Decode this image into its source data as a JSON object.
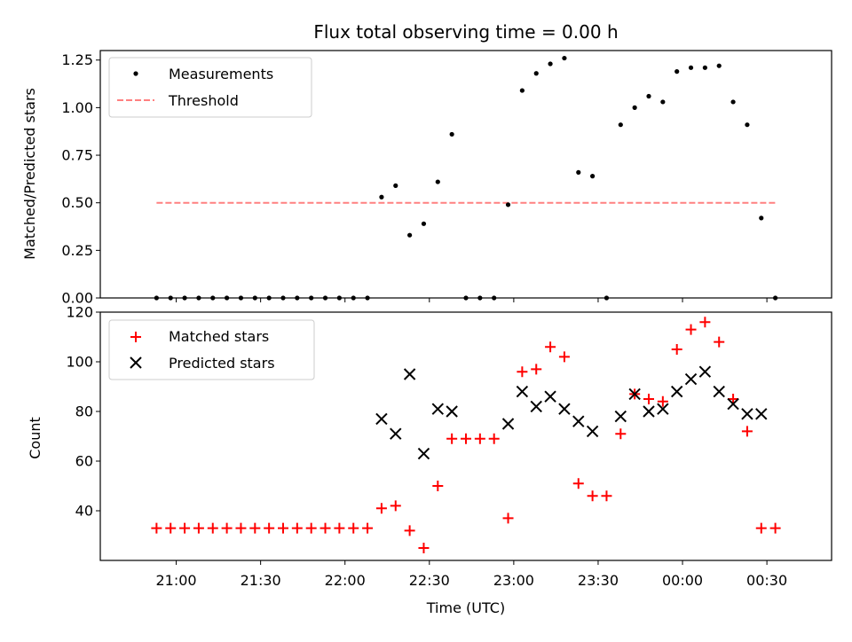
{
  "title": "Flux total observing time = 0.00 h",
  "colors": {
    "measurement": "#000000",
    "threshold": "#ff8080",
    "matched": "#ff0000",
    "predicted": "#000000"
  },
  "chart_data": [
    {
      "type": "scatter",
      "title": "Flux total observing time = 0.00 h",
      "ylabel": "Matched/Predicted stars",
      "xlabel": "",
      "ylim": [
        0,
        1.3
      ],
      "yticks": [
        0.0,
        0.25,
        0.5,
        0.75,
        1.0,
        1.25
      ],
      "ytick_labels": [
        "0.00",
        "0.25",
        "0.50",
        "0.75",
        "1.00",
        "1.25"
      ],
      "legend": {
        "position": "top-left",
        "entries": [
          "Measurements",
          "Threshold"
        ]
      },
      "series": [
        {
          "name": "Measurements",
          "marker": "dot",
          "points": [
            [
              "20:53",
              0
            ],
            [
              "20:58",
              0
            ],
            [
              "21:03",
              0
            ],
            [
              "21:08",
              0
            ],
            [
              "21:13",
              0
            ],
            [
              "21:18",
              0
            ],
            [
              "21:23",
              0
            ],
            [
              "21:28",
              0
            ],
            [
              "21:33",
              0
            ],
            [
              "21:38",
              0
            ],
            [
              "21:43",
              0
            ],
            [
              "21:48",
              0
            ],
            [
              "21:53",
              0
            ],
            [
              "21:58",
              0
            ],
            [
              "22:03",
              0
            ],
            [
              "22:08",
              0
            ],
            [
              "22:13",
              0.53
            ],
            [
              "22:18",
              0.59
            ],
            [
              "22:23",
              0.33
            ],
            [
              "22:28",
              0.39
            ],
            [
              "22:33",
              0.61
            ],
            [
              "22:38",
              0.86
            ],
            [
              "22:43",
              0
            ],
            [
              "22:48",
              0
            ],
            [
              "22:53",
              0
            ],
            [
              "22:58",
              0.49
            ],
            [
              "23:03",
              1.09
            ],
            [
              "23:08",
              1.18
            ],
            [
              "23:13",
              1.23
            ],
            [
              "23:18",
              1.26
            ],
            [
              "23:23",
              0.66
            ],
            [
              "23:28",
              0.64
            ],
            [
              "23:33",
              0
            ],
            [
              "23:38",
              0.91
            ],
            [
              "23:43",
              1.0
            ],
            [
              "23:48",
              1.06
            ],
            [
              "23:53",
              1.03
            ],
            [
              "23:58",
              1.19
            ],
            [
              "00:03",
              1.21
            ],
            [
              "00:08",
              1.21
            ],
            [
              "00:13",
              1.22
            ],
            [
              "00:18",
              1.03
            ],
            [
              "00:23",
              0.91
            ],
            [
              "00:28",
              0.42
            ],
            [
              "00:33",
              0
            ]
          ]
        },
        {
          "name": "Threshold",
          "marker": "dashed-line",
          "points": [
            [
              "20:53",
              0.5
            ],
            [
              "00:33",
              0.5
            ]
          ]
        }
      ]
    },
    {
      "type": "scatter",
      "ylabel": "Count",
      "xlabel": "Time (UTC)",
      "ylim": [
        20,
        120
      ],
      "yticks": [
        40,
        60,
        80,
        100,
        120
      ],
      "xticks": [
        "21:00",
        "21:30",
        "22:00",
        "22:30",
        "23:00",
        "23:30",
        "00:00",
        "00:30"
      ],
      "legend": {
        "position": "top-left",
        "entries": [
          "Matched stars",
          "Predicted stars"
        ]
      },
      "series": [
        {
          "name": "Matched stars",
          "marker": "plus",
          "points": [
            [
              "20:53",
              33
            ],
            [
              "20:58",
              33
            ],
            [
              "21:03",
              33
            ],
            [
              "21:08",
              33
            ],
            [
              "21:13",
              33
            ],
            [
              "21:18",
              33
            ],
            [
              "21:23",
              33
            ],
            [
              "21:28",
              33
            ],
            [
              "21:33",
              33
            ],
            [
              "21:38",
              33
            ],
            [
              "21:43",
              33
            ],
            [
              "21:48",
              33
            ],
            [
              "21:53",
              33
            ],
            [
              "21:58",
              33
            ],
            [
              "22:03",
              33
            ],
            [
              "22:08",
              33
            ],
            [
              "22:13",
              41
            ],
            [
              "22:18",
              42
            ],
            [
              "22:23",
              32
            ],
            [
              "22:28",
              25
            ],
            [
              "22:33",
              50
            ],
            [
              "22:38",
              69
            ],
            [
              "22:43",
              69
            ],
            [
              "22:48",
              69
            ],
            [
              "22:53",
              69
            ],
            [
              "22:58",
              37
            ],
            [
              "23:03",
              96
            ],
            [
              "23:08",
              97
            ],
            [
              "23:13",
              106
            ],
            [
              "23:18",
              102
            ],
            [
              "23:23",
              51
            ],
            [
              "23:28",
              46
            ],
            [
              "23:33",
              46
            ],
            [
              "23:38",
              71
            ],
            [
              "23:43",
              87
            ],
            [
              "23:48",
              85
            ],
            [
              "23:53",
              84
            ],
            [
              "23:58",
              105
            ],
            [
              "00:03",
              113
            ],
            [
              "00:08",
              116
            ],
            [
              "00:13",
              108
            ],
            [
              "00:18",
              85
            ],
            [
              "00:23",
              72
            ],
            [
              "00:28",
              33
            ],
            [
              "00:33",
              33
            ]
          ]
        },
        {
          "name": "Predicted stars",
          "marker": "x",
          "points": [
            [
              "22:13",
              77
            ],
            [
              "22:18",
              71
            ],
            [
              "22:23",
              95
            ],
            [
              "22:28",
              63
            ],
            [
              "22:33",
              81
            ],
            [
              "22:38",
              80
            ],
            [
              "22:58",
              75
            ],
            [
              "23:03",
              88
            ],
            [
              "23:08",
              82
            ],
            [
              "23:13",
              86
            ],
            [
              "23:18",
              81
            ],
            [
              "23:23",
              76
            ],
            [
              "23:28",
              72
            ],
            [
              "23:38",
              78
            ],
            [
              "23:43",
              87
            ],
            [
              "23:48",
              80
            ],
            [
              "23:53",
              81
            ],
            [
              "23:58",
              88
            ],
            [
              "00:03",
              93
            ],
            [
              "00:08",
              96
            ],
            [
              "00:13",
              88
            ],
            [
              "00:18",
              83
            ],
            [
              "00:23",
              79
            ],
            [
              "00:28",
              79
            ]
          ]
        }
      ]
    }
  ]
}
